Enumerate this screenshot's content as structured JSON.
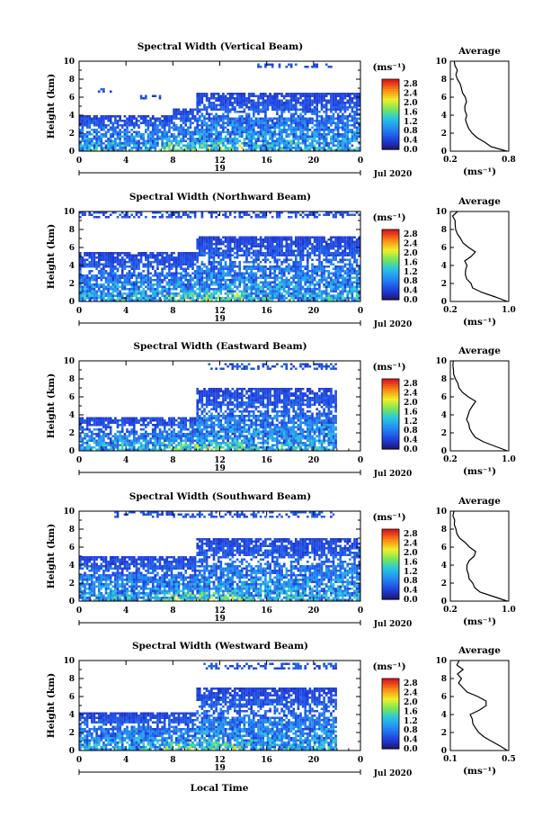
{
  "chart_data": [
    {
      "type": "heatmap",
      "title": "Spectral Width (Vertical Beam)",
      "ylabel": "Height (km)",
      "x_ticks": [
        "0",
        "4",
        "8",
        "12",
        "16",
        "20",
        "0"
      ],
      "xlim": [
        0,
        24
      ],
      "y_ticks": [
        "0",
        "2",
        "4",
        "6",
        "8",
        "10"
      ],
      "ylim": [
        0,
        10
      ],
      "day_label": "19",
      "date_label": "Jul 2020",
      "colorbar": {
        "unit": "(ms⁻¹)",
        "ticks": [
          "0.0",
          "0.4",
          "0.8",
          "1.2",
          "1.6",
          "2.0",
          "2.4",
          "2.8"
        ],
        "range": [
          0,
          3.0
        ]
      },
      "echo_tops_km": [
        {
          "from": 0,
          "to": 8,
          "top": 3.9
        },
        {
          "from": 8,
          "to": 10,
          "top": 4.6
        },
        {
          "from": 10,
          "to": 24,
          "top": 6.4
        }
      ],
      "upper_layers": [
        {
          "from": 1.5,
          "to": 3,
          "bottom": 6.3,
          "top": 6.8
        },
        {
          "from": 5.2,
          "to": 7,
          "bottom": 5.7,
          "top": 6.1
        },
        {
          "from": 15,
          "to": 22,
          "bottom": 9.2,
          "top": 9.6
        }
      ],
      "average": {
        "title": "Average",
        "xlabel": "(ms⁻¹)",
        "x_ticks": [
          "0.2",
          "0.8"
        ],
        "xlim": [
          0.2,
          0.8
        ],
        "height_km": [
          0,
          0.5,
          1,
          1.5,
          2,
          2.5,
          3,
          3.5,
          4,
          4.5,
          5,
          5.5,
          6,
          6.5,
          7,
          7.5,
          8,
          8.5,
          9,
          9.5,
          10
        ],
        "width": [
          0.78,
          0.62,
          0.55,
          0.48,
          0.42,
          0.4,
          0.37,
          0.35,
          0.36,
          0.34,
          0.34,
          0.37,
          0.35,
          0.33,
          0.32,
          0.3,
          0.28,
          0.26,
          0.27,
          0.24,
          0.24
        ]
      }
    },
    {
      "type": "heatmap",
      "title": "Spectral Width (Northward Beam)",
      "ylabel": "Height (km)",
      "x_ticks": [
        "0",
        "4",
        "8",
        "12",
        "16",
        "20",
        "0"
      ],
      "xlim": [
        0,
        24
      ],
      "y_ticks": [
        "0",
        "2",
        "4",
        "6",
        "8",
        "10"
      ],
      "ylim": [
        0,
        10
      ],
      "day_label": "19",
      "date_label": "Jul 2020",
      "colorbar": {
        "unit": "(ms⁻¹)",
        "ticks": [
          "0.0",
          "0.4",
          "0.8",
          "1.2",
          "1.6",
          "2.0",
          "2.4",
          "2.8"
        ],
        "range": [
          0,
          3.0
        ]
      },
      "echo_tops_km": [
        {
          "from": 0,
          "to": 10,
          "top": 5.3
        },
        {
          "from": 10,
          "to": 24,
          "top": 7.1
        }
      ],
      "upper_layers": [
        {
          "from": 0,
          "to": 24,
          "bottom": 9.2,
          "top": 9.8
        }
      ],
      "average": {
        "title": "Average",
        "xlabel": "(ms⁻¹)",
        "x_ticks": [
          "0.2",
          "1.0"
        ],
        "xlim": [
          0.2,
          1.0
        ],
        "height_km": [
          0,
          0.5,
          1,
          1.5,
          2,
          2.5,
          3,
          3.5,
          4,
          4.5,
          5,
          5.5,
          6,
          6.5,
          7,
          7.5,
          8,
          8.5,
          9,
          9.5,
          10
        ],
        "width": [
          0.98,
          0.8,
          0.62,
          0.52,
          0.48,
          0.44,
          0.42,
          0.4,
          0.42,
          0.41,
          0.5,
          0.55,
          0.45,
          0.38,
          0.33,
          0.3,
          0.28,
          0.26,
          0.25,
          0.24,
          0.3
        ]
      }
    },
    {
      "type": "heatmap",
      "title": "Spectral Width (Eastward Beam)",
      "ylabel": "Height (km)",
      "x_ticks": [
        "0",
        "4",
        "8",
        "12",
        "16",
        "20",
        "0"
      ],
      "xlim": [
        0,
        24
      ],
      "y_ticks": [
        "0",
        "2",
        "4",
        "6",
        "8",
        "10"
      ],
      "ylim": [
        0,
        10
      ],
      "day_label": "19",
      "date_label": "Jul 2020",
      "colorbar": {
        "unit": "(ms⁻¹)",
        "ticks": [
          "0.0",
          "0.4",
          "0.8",
          "1.2",
          "1.6",
          "2.0",
          "2.4",
          "2.8"
        ],
        "range": [
          0,
          3.0
        ]
      },
      "echo_tops_km": [
        {
          "from": 0,
          "to": 10,
          "top": 3.6
        },
        {
          "from": 10,
          "to": 22,
          "top": 6.9
        }
      ],
      "upper_layers": [
        {
          "from": 11,
          "to": 22,
          "bottom": 9.0,
          "top": 9.6
        }
      ],
      "average": {
        "title": "Average",
        "xlabel": "(ms⁻¹)",
        "x_ticks": [
          "0.2",
          "1.0"
        ],
        "xlim": [
          0.2,
          1.0
        ],
        "height_km": [
          0,
          0.5,
          1,
          1.5,
          2,
          2.5,
          3,
          3.5,
          4,
          4.5,
          5,
          5.5,
          6,
          6.5,
          7,
          7.5,
          8,
          8.5,
          9,
          9.5,
          10
        ],
        "width": [
          0.98,
          0.82,
          0.65,
          0.55,
          0.5,
          0.46,
          0.44,
          0.42,
          0.43,
          0.45,
          0.52,
          0.56,
          0.46,
          0.38,
          0.32,
          0.29,
          0.26,
          0.24,
          0.25,
          0.23,
          0.24
        ]
      }
    },
    {
      "type": "heatmap",
      "title": "Spectral Width (Southward Beam)",
      "ylabel": "Height (km)",
      "x_ticks": [
        "0",
        "4",
        "8",
        "12",
        "16",
        "20",
        "0"
      ],
      "xlim": [
        0,
        24
      ],
      "y_ticks": [
        "0",
        "2",
        "4",
        "6",
        "8",
        "10"
      ],
      "ylim": [
        0,
        10
      ],
      "day_label": "19",
      "date_label": "Jul 2020",
      "colorbar": {
        "unit": "(ms⁻¹)",
        "ticks": [
          "0.0",
          "0.4",
          "0.8",
          "1.2",
          "1.6",
          "2.0",
          "2.4",
          "2.8"
        ],
        "range": [
          0,
          3.0
        ]
      },
      "echo_tops_km": [
        {
          "from": 0,
          "to": 10,
          "top": 5.0
        },
        {
          "from": 10,
          "to": 24,
          "top": 7.0
        }
      ],
      "upper_layers": [
        {
          "from": 3,
          "to": 22,
          "bottom": 9.2,
          "top": 9.9
        }
      ],
      "average": {
        "title": "Average",
        "xlabel": "(ms⁻¹)",
        "x_ticks": [
          "0.2",
          "1.0"
        ],
        "xlim": [
          0.2,
          1.0
        ],
        "height_km": [
          0,
          0.5,
          1,
          1.5,
          2,
          2.5,
          3,
          3.5,
          4,
          4.5,
          5,
          5.5,
          6,
          6.5,
          7,
          7.5,
          8,
          8.5,
          9,
          9.5,
          10
        ],
        "width": [
          0.98,
          0.78,
          0.62,
          0.54,
          0.5,
          0.46,
          0.45,
          0.43,
          0.44,
          0.46,
          0.52,
          0.56,
          0.47,
          0.4,
          0.34,
          0.3,
          0.27,
          0.25,
          0.26,
          0.24,
          0.25
        ]
      }
    },
    {
      "type": "heatmap",
      "title": "Spectral Width (Westward Beam)",
      "ylabel": "Height (km)",
      "x_ticks": [
        "0",
        "4",
        "8",
        "12",
        "16",
        "20",
        "0"
      ],
      "xlim": [
        0,
        24
      ],
      "y_ticks": [
        "0",
        "2",
        "4",
        "6",
        "8",
        "10"
      ],
      "ylim": [
        0,
        10
      ],
      "day_label": "19",
      "date_label": "Jul 2020",
      "xlabel": "Local Time",
      "colorbar": {
        "unit": "(ms⁻¹)",
        "ticks": [
          "0.0",
          "0.4",
          "0.8",
          "1.2",
          "1.6",
          "2.0",
          "2.4",
          "2.8"
        ],
        "range": [
          0,
          3.0
        ]
      },
      "echo_tops_km": [
        {
          "from": 0,
          "to": 10,
          "top": 4.2
        },
        {
          "from": 10,
          "to": 22,
          "top": 6.8
        }
      ],
      "upper_layers": [
        {
          "from": 10.5,
          "to": 22,
          "bottom": 9.0,
          "top": 9.7
        }
      ],
      "average": {
        "title": "Average",
        "xlabel": "(ms⁻¹)",
        "x_ticks": [
          "0.1",
          "0.5"
        ],
        "xlim": [
          0.1,
          0.5
        ],
        "height_km": [
          0,
          0.5,
          1,
          1.5,
          2,
          2.5,
          3,
          3.5,
          4,
          4.5,
          5,
          5.5,
          6,
          6.5,
          7,
          7.5,
          8,
          8.5,
          9,
          9.5,
          10
        ],
        "width": [
          0.49,
          0.44,
          0.38,
          0.33,
          0.3,
          0.27,
          0.26,
          0.25,
          0.24,
          0.3,
          0.34,
          0.35,
          0.28,
          0.22,
          0.18,
          0.16,
          0.17,
          0.15,
          0.18,
          0.14,
          0.16
        ]
      }
    }
  ]
}
